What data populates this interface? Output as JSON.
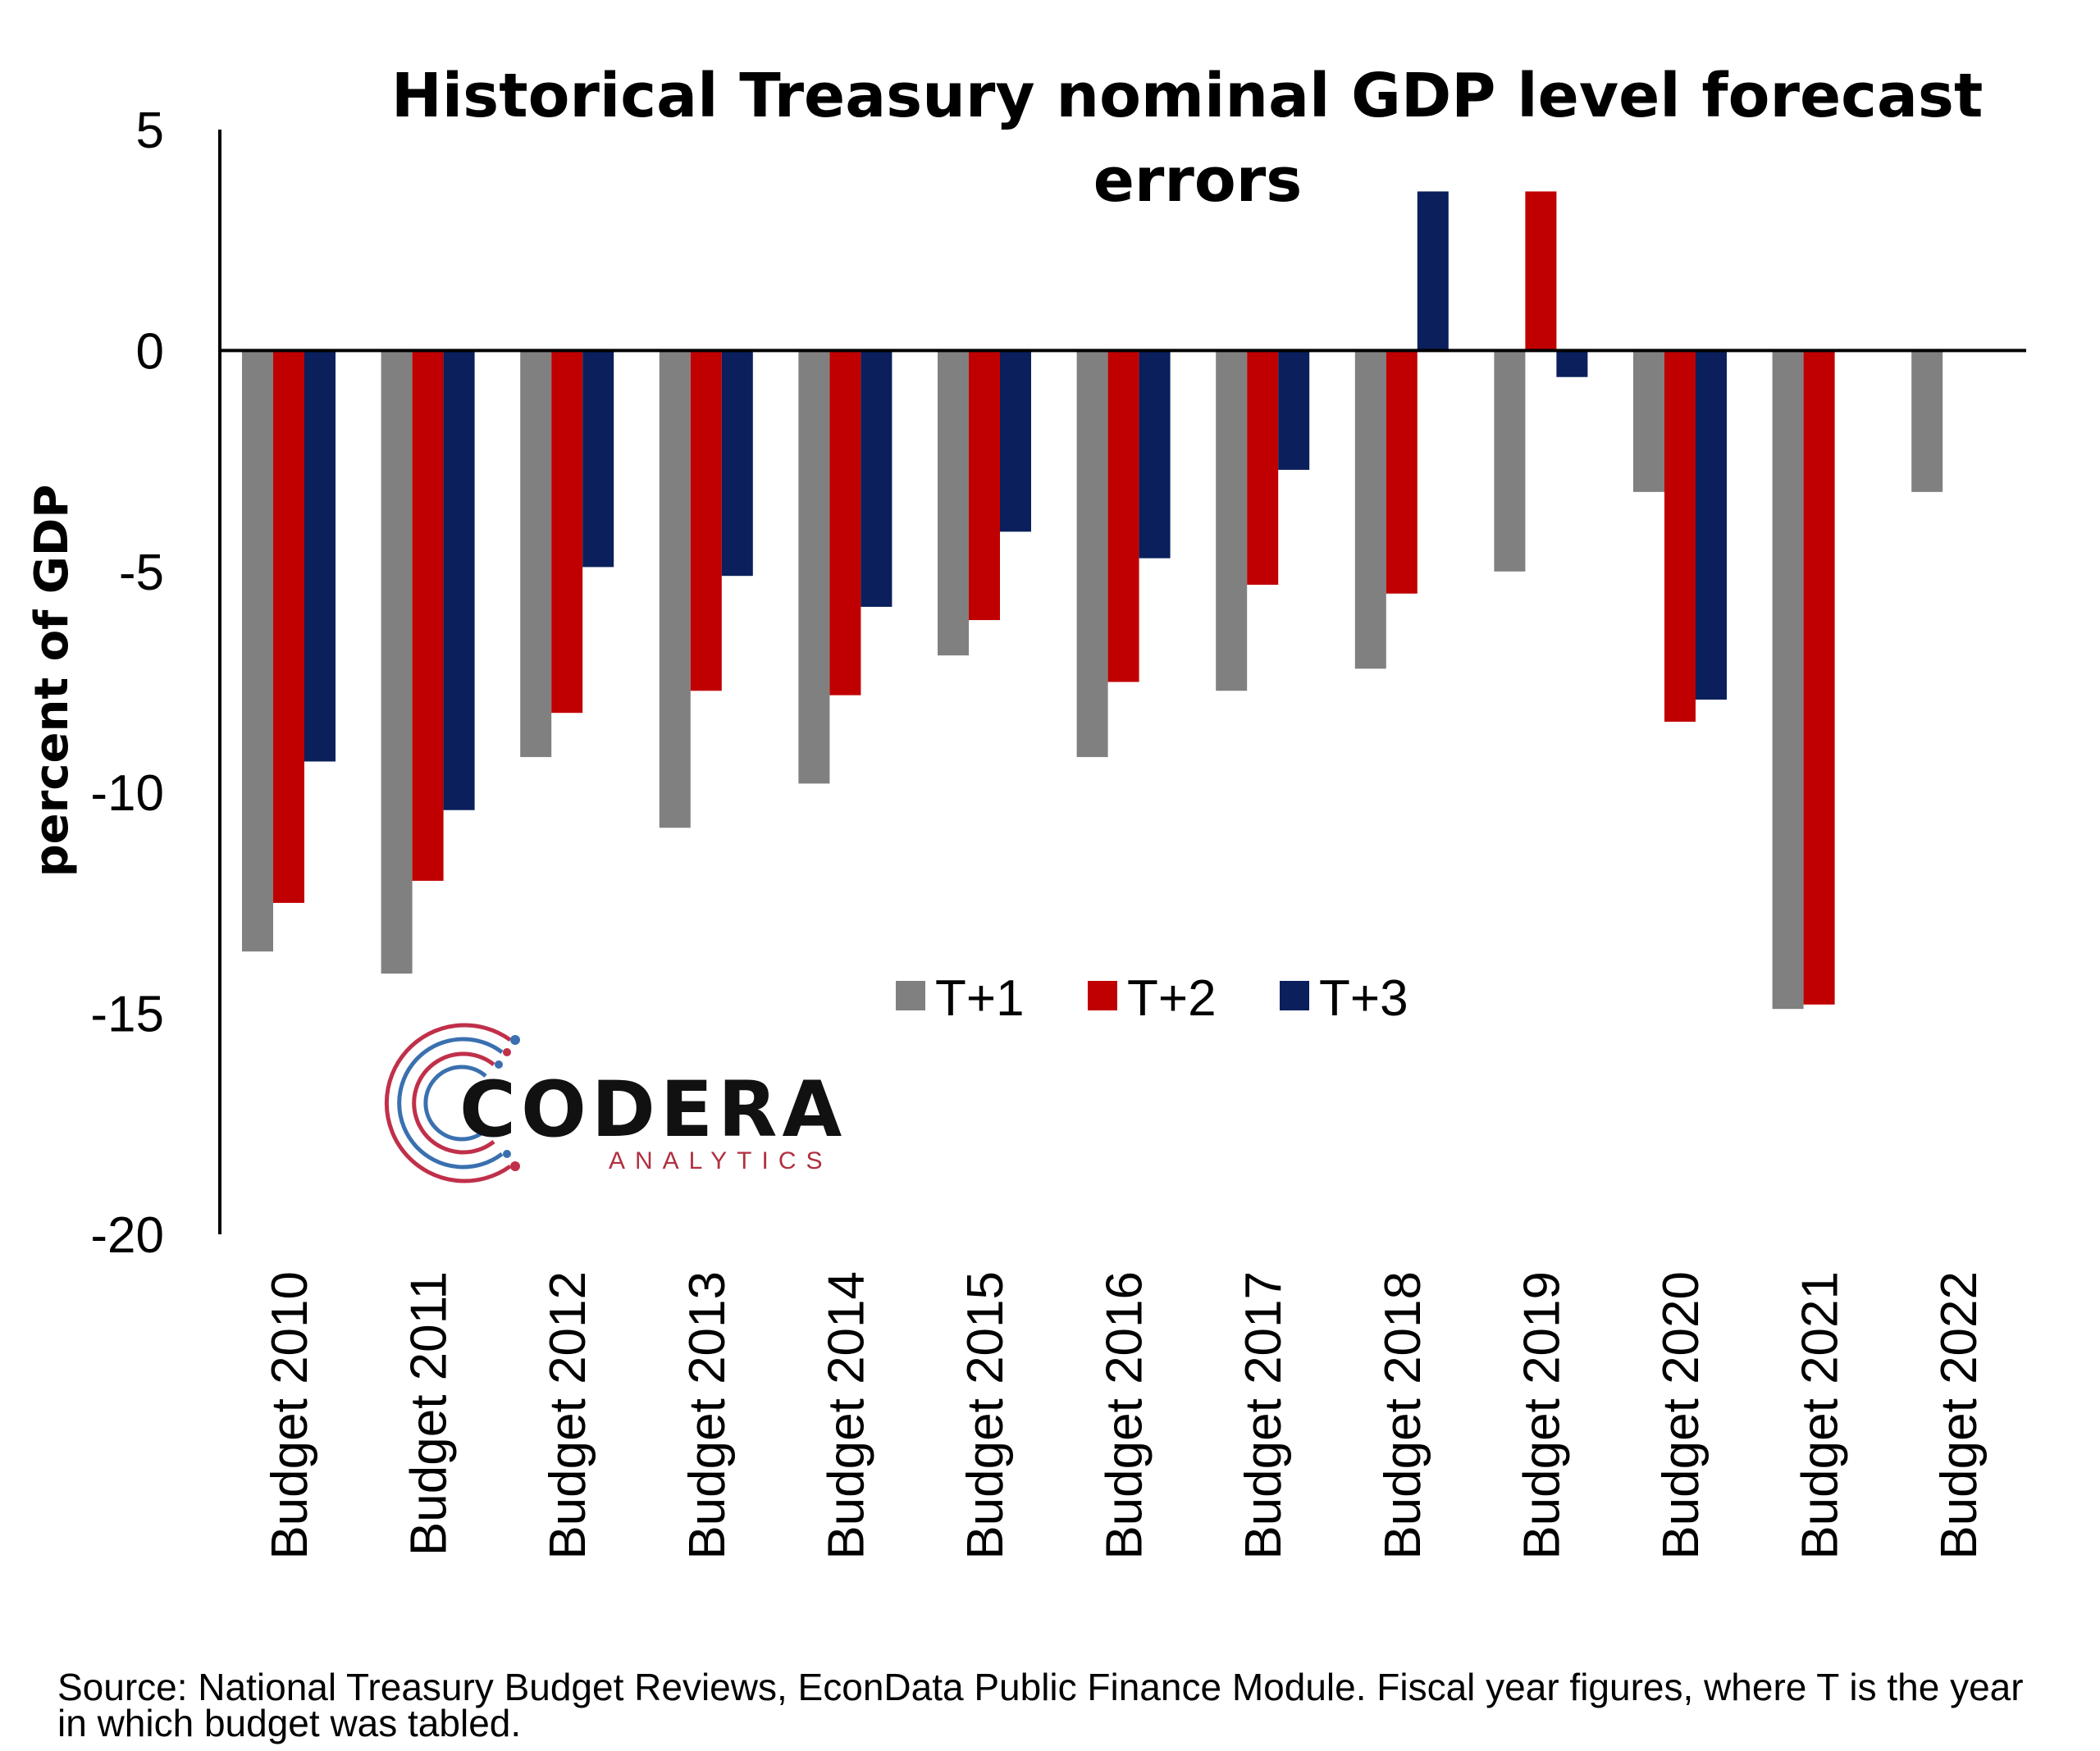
{
  "chart_data": {
    "type": "bar",
    "title": "Historical Treasury nominal GDP level forecast errors",
    "ylabel": "percent of GDP",
    "xlabel": "",
    "ylim": [
      -20,
      5
    ],
    "yticks": [
      "5",
      "0",
      "-5",
      "-10",
      "-15",
      "-20"
    ],
    "ytick_values": [
      5,
      0,
      -5,
      -10,
      -15,
      -20
    ],
    "categories": [
      "Budget 2010",
      "Budget 2011",
      "Budget 2012",
      "Budget 2013",
      "Budget 2014",
      "Budget 2015",
      "Budget 2016",
      "Budget 2017",
      "Budget 2018",
      "Budget 2019",
      "Budget 2020",
      "Budget 2021",
      "Budget 2022"
    ],
    "series": [
      {
        "name": "T+1",
        "color": "#808080",
        "values": [
          -13.6,
          -14.1,
          -9.2,
          -10.8,
          -9.8,
          -6.9,
          -9.2,
          -7.7,
          -7.2,
          -5.0,
          -3.2,
          -14.9,
          -3.2
        ]
      },
      {
        "name": "T+2",
        "color": "#c00000",
        "values": [
          -12.5,
          -12.0,
          -8.2,
          -7.7,
          -7.8,
          -6.1,
          -7.5,
          -5.3,
          -5.5,
          3.6,
          -8.4,
          -14.8,
          null
        ]
      },
      {
        "name": "T+3",
        "color": "#0a1f5c",
        "values": [
          -9.3,
          -10.4,
          -4.9,
          -5.1,
          -5.8,
          -4.1,
          -4.7,
          -2.7,
          3.6,
          -0.6,
          -7.9,
          null,
          null
        ]
      }
    ],
    "legend_position": "bottom-center",
    "grid": false
  },
  "logo": {
    "name": "CODERA",
    "tagline": "ANALYTICS",
    "icon": "circular-dots-logo-icon"
  },
  "source": "Source: National Treasury Budget Reviews, EconData Public Finance Module. Fiscal year figures, where T is the year in which budget was tabled."
}
